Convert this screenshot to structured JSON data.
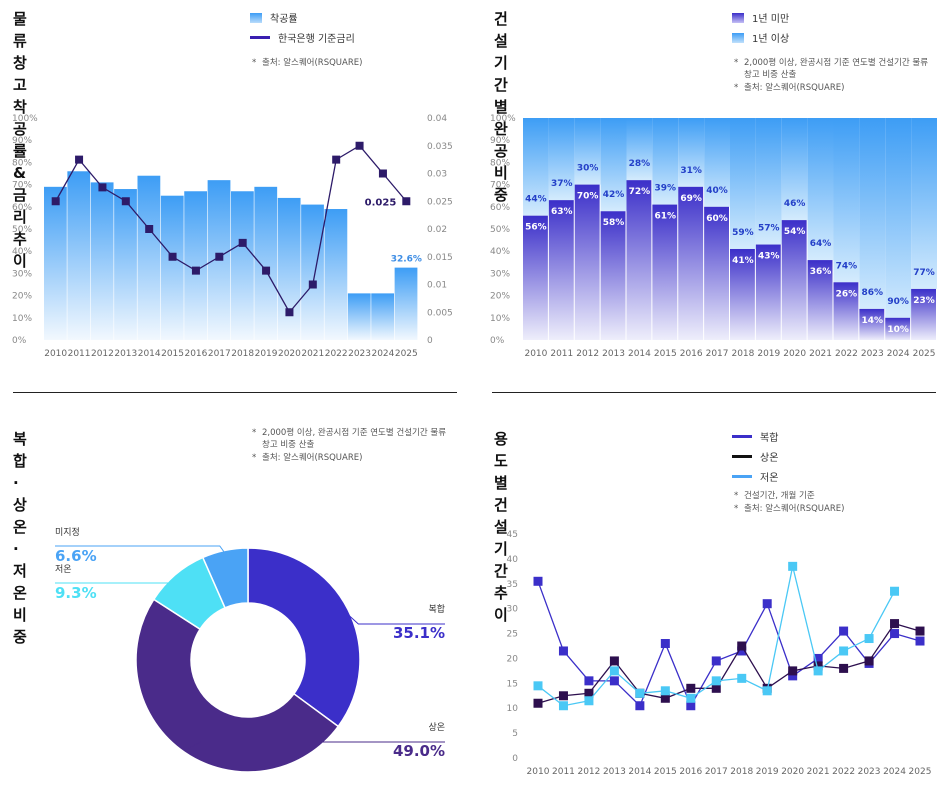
{
  "panels": {
    "p1": {
      "title_line1": "물류창고 착공률 &",
      "title_line2": "금리 추이",
      "legend": [
        "착공률",
        "한국은행 기준금리"
      ],
      "notes": [
        "출처: 알스퀘어(RSQUARE)"
      ]
    },
    "p2": {
      "title": "건설 기간별 완공 비중",
      "legend": [
        "1년 미만",
        "1년 이상"
      ],
      "notes": [
        "2,000평 이상, 완공시점 기준 연도별 건설기간 물류",
        "창고 비중 산출",
        "출처: 알스퀘어(RSQUARE)"
      ]
    },
    "p3": {
      "title": "복합 · 상온 · 저온 비중",
      "notes": [
        "2,000평 이상, 완공시점 기준 연도별 건설기간 물류",
        "창고 비중 산출",
        "출처: 알스퀘어(RSQUARE)"
      ]
    },
    "p4": {
      "title": "용도별 건설기간 추이",
      "legend": [
        "복합",
        "상온",
        "저온"
      ],
      "notes": [
        "건설기간, 개월 기준",
        "출처: 알스퀘어(RSQUARE)"
      ]
    }
  },
  "colors": {
    "accent_blue": "#3d9df5",
    "rate_line": "#2d1b69",
    "indigo": "#3b2fc9",
    "dark_purple": "#2d1b69",
    "cyan": "#4ee0f5",
    "sky": "#4aa3f5",
    "violet": "#4a2b8a"
  },
  "chart_data": [
    {
      "type": "bar",
      "categories": [
        "2010",
        "2011",
        "2012",
        "2013",
        "2014",
        "2015",
        "2016",
        "2017",
        "2018",
        "2019",
        "2020",
        "2021",
        "2022",
        "2023",
        "2024",
        "2025"
      ],
      "series": [
        {
          "name": "착공률",
          "values": [
            69,
            76,
            71,
            68,
            74,
            65,
            67,
            72,
            67,
            69,
            64,
            61,
            59,
            21,
            21,
            32.6
          ]
        },
        {
          "name": "한국은행 기준금리",
          "type": "line",
          "axis": "right",
          "values": [
            0.025,
            0.0325,
            0.0275,
            0.025,
            0.02,
            0.015,
            0.0125,
            0.015,
            0.0175,
            0.0125,
            0.005,
            0.01,
            0.0325,
            0.035,
            0.03,
            0.025
          ]
        }
      ],
      "y_ticks": [
        "0%",
        "10%",
        "20%",
        "30%",
        "40%",
        "50%",
        "60%",
        "70%",
        "80%",
        "90%",
        "100%"
      ],
      "y2_ticks": [
        "0",
        "0.005",
        "0.01",
        "0.015",
        "0.02",
        "0.025",
        "0.03",
        "0.035",
        "0.04"
      ],
      "ylim": [
        0,
        100
      ],
      "y2lim": [
        0,
        0.04
      ],
      "annotations": [
        {
          "category": "2025",
          "series": "착공률",
          "label": "32.6%"
        },
        {
          "category": "2025",
          "series": "한국은행 기준금리",
          "label": "0.025"
        }
      ]
    },
    {
      "type": "bar",
      "stacked": true,
      "categories": [
        "2010",
        "2011",
        "2012",
        "2013",
        "2014",
        "2015",
        "2016",
        "2017",
        "2018",
        "2019",
        "2020",
        "2021",
        "2022",
        "2023",
        "2024",
        "2025"
      ],
      "series": [
        {
          "name": "1년 미만",
          "values": [
            56,
            63,
            70,
            58,
            72,
            61,
            69,
            60,
            41,
            43,
            54,
            36,
            26,
            14,
            10,
            23
          ],
          "labels": [
            "56%",
            "63%",
            "70%",
            "58%",
            "72%",
            "61%",
            "69%",
            "60%",
            "41%",
            "43%",
            "54%",
            "36%",
            "26%",
            "14%",
            "10%",
            "23%"
          ]
        },
        {
          "name": "1년 이상",
          "values": [
            44,
            37,
            30,
            42,
            28,
            39,
            31,
            40,
            59,
            57,
            46,
            64,
            74,
            86,
            90,
            77
          ],
          "labels": [
            "44%",
            "37%",
            "30%",
            "42%",
            "28%",
            "39%",
            "31%",
            "40%",
            "59%",
            "57%",
            "46%",
            "64%",
            "74%",
            "86%",
            "90%",
            "77%"
          ]
        }
      ],
      "y_ticks": [
        "0%",
        "10%",
        "20%",
        "30%",
        "40%",
        "50%",
        "60%",
        "70%",
        "80%",
        "90%",
        "100%"
      ],
      "ylim": [
        0,
        100
      ]
    },
    {
      "type": "pie",
      "donut": true,
      "slices": [
        {
          "name": "복합",
          "value": 35.1,
          "label": "35.1%",
          "color": "#3b2fc9"
        },
        {
          "name": "상온",
          "value": 49.0,
          "label": "49.0%",
          "color": "#4a2b8a"
        },
        {
          "name": "저온",
          "value": 9.3,
          "label": "9.3%",
          "color": "#4ee0f5"
        },
        {
          "name": "미지정",
          "value": 6.6,
          "label": "6.6%",
          "color": "#4aa3f5"
        }
      ]
    },
    {
      "type": "line",
      "x": [
        "2010",
        "2011",
        "2012",
        "2013",
        "2014",
        "2015",
        "2016",
        "2017",
        "2018",
        "2019",
        "2020",
        "2021",
        "2022",
        "2023",
        "2024",
        "2025"
      ],
      "series": [
        {
          "name": "복합",
          "color": "#3b2fc9",
          "values": [
            35.5,
            21.5,
            15.5,
            15.5,
            10.5,
            23,
            10.5,
            19.5,
            21.5,
            31,
            16.5,
            20,
            25.5,
            19,
            25,
            23.5
          ]
        },
        {
          "name": "상온",
          "color": "#2d0f4e",
          "values": [
            11,
            12.5,
            13,
            19.5,
            13,
            12,
            14,
            14,
            22.5,
            14,
            17.5,
            18.5,
            18,
            19.5,
            27,
            25.5
          ]
        },
        {
          "name": "저온",
          "color": "#4ac8f5",
          "values": [
            14.5,
            10.5,
            11.5,
            17.5,
            13,
            13.5,
            12,
            15.5,
            16,
            13.5,
            38.5,
            17.5,
            21.5,
            24,
            33.5,
            null
          ]
        }
      ],
      "y_ticks": [
        "0",
        "5",
        "10",
        "15",
        "20",
        "25",
        "30",
        "35",
        "40",
        "45"
      ],
      "ylim": [
        0,
        45
      ]
    }
  ]
}
